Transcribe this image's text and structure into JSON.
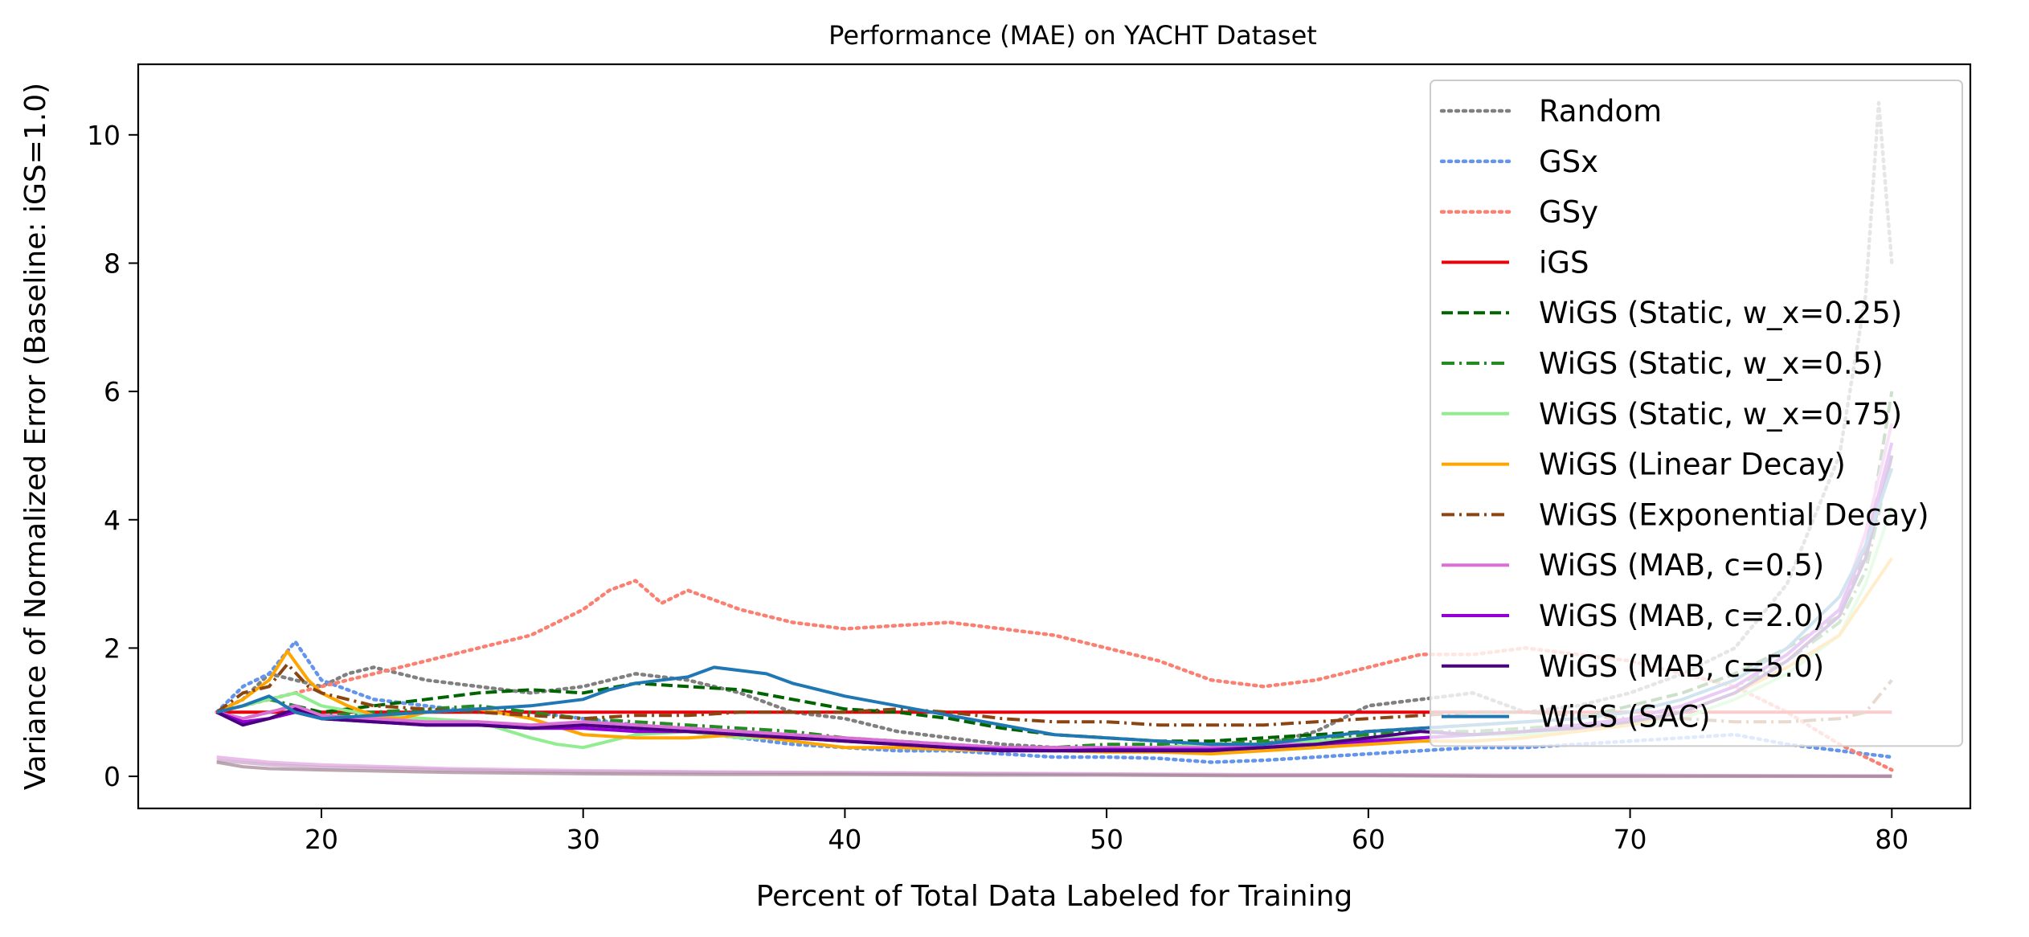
{
  "chart_data": {
    "type": "line",
    "title": "Performance (MAE) on YACHT Dataset",
    "xlabel": "Percent of Total Data Labeled for Training",
    "ylabel": "Variance of Normalized Error (Baseline: iGS=1.0)",
    "xlim": [
      13,
      83
    ],
    "ylim": [
      -0.5,
      11.1
    ],
    "xticks": [
      20,
      30,
      40,
      50,
      60,
      70,
      80
    ],
    "yticks": [
      0,
      2,
      4,
      6,
      8,
      10
    ],
    "grid": false,
    "legend_position": "top-right",
    "series": [
      {
        "name": "Random",
        "color": "#808080",
        "style": "dotted",
        "x": [
          16,
          17,
          18,
          19,
          20,
          21,
          22,
          24,
          26,
          28,
          30,
          32,
          34,
          36,
          38,
          40,
          42,
          44,
          46,
          48,
          50,
          52,
          54,
          56,
          58,
          60,
          62,
          64,
          66,
          68,
          70,
          72,
          74,
          76,
          78,
          79,
          79.5,
          80
        ],
        "y": [
          1.0,
          1.2,
          1.6,
          1.5,
          1.4,
          1.6,
          1.7,
          1.5,
          1.4,
          1.3,
          1.4,
          1.6,
          1.5,
          1.3,
          1.0,
          0.9,
          0.7,
          0.6,
          0.5,
          0.45,
          0.4,
          0.45,
          0.5,
          0.5,
          0.7,
          1.1,
          1.2,
          1.3,
          1.0,
          1.1,
          1.3,
          1.6,
          2.0,
          3.0,
          5.0,
          7.5,
          10.5,
          8.0
        ]
      },
      {
        "name": "GSx",
        "color": "#6495ED",
        "style": "dotted",
        "x": [
          16,
          17,
          18,
          19,
          20,
          22,
          24,
          26,
          28,
          30,
          32,
          34,
          36,
          38,
          40,
          42,
          44,
          46,
          48,
          50,
          52,
          54,
          56,
          58,
          60,
          62,
          64,
          66,
          68,
          70,
          72,
          74,
          76,
          78,
          80
        ],
        "y": [
          1.0,
          1.4,
          1.6,
          2.1,
          1.5,
          1.2,
          1.1,
          1.0,
          1.0,
          0.9,
          0.8,
          0.7,
          0.6,
          0.5,
          0.45,
          0.4,
          0.4,
          0.35,
          0.3,
          0.3,
          0.28,
          0.22,
          0.25,
          0.3,
          0.35,
          0.4,
          0.45,
          0.45,
          0.5,
          0.55,
          0.6,
          0.65,
          0.5,
          0.4,
          0.3
        ]
      },
      {
        "name": "GSy",
        "color": "#FA8072",
        "style": "dotted",
        "x": [
          16,
          18,
          20,
          22,
          24,
          26,
          28,
          30,
          31,
          32,
          33,
          34,
          36,
          38,
          40,
          42,
          44,
          46,
          48,
          50,
          52,
          54,
          56,
          58,
          60,
          62,
          64,
          66,
          68,
          70,
          72,
          74,
          76,
          78,
          80
        ],
        "y": [
          1.0,
          1.2,
          1.4,
          1.6,
          1.8,
          2.0,
          2.2,
          2.6,
          2.9,
          3.05,
          2.7,
          2.9,
          2.6,
          2.4,
          2.3,
          2.35,
          2.4,
          2.3,
          2.2,
          2.0,
          1.8,
          1.5,
          1.4,
          1.5,
          1.7,
          1.9,
          1.9,
          2.0,
          1.9,
          1.8,
          1.6,
          1.4,
          1.0,
          0.5,
          0.1
        ]
      },
      {
        "name": "iGS",
        "color": "#E8000B",
        "style": "solid",
        "x": [
          16,
          80
        ],
        "y": [
          1.0,
          1.0
        ]
      },
      {
        "name": "WiGS (Static, w_x=0.25)",
        "color": "#006400",
        "style": "dashed",
        "x": [
          16,
          17,
          18,
          19,
          20,
          22,
          24,
          26,
          28,
          30,
          32,
          34,
          36,
          38,
          40,
          42,
          44,
          46,
          48,
          50,
          52,
          54,
          56,
          58,
          60,
          62,
          64,
          66,
          68,
          70,
          72,
          74,
          76,
          78,
          79,
          80
        ],
        "y": [
          1.0,
          0.9,
          1.0,
          1.1,
          1.0,
          1.1,
          1.2,
          1.3,
          1.35,
          1.3,
          1.45,
          1.4,
          1.35,
          1.2,
          1.05,
          1.0,
          0.9,
          0.75,
          0.65,
          0.6,
          0.55,
          0.55,
          0.6,
          0.65,
          0.7,
          0.75,
          0.8,
          0.85,
          0.9,
          1.1,
          1.3,
          1.6,
          2.0,
          2.5,
          3.5,
          6.0
        ]
      },
      {
        "name": "WiGS (Static, w_x=0.5)",
        "color": "#228B22",
        "style": "dashdot",
        "x": [
          16,
          17,
          18,
          19,
          20,
          22,
          24,
          26,
          28,
          30,
          32,
          34,
          36,
          38,
          40,
          42,
          44,
          46,
          48,
          50,
          52,
          54,
          56,
          58,
          60,
          62,
          64,
          66,
          68,
          70,
          72,
          74,
          76,
          78,
          79,
          80
        ],
        "y": [
          1.0,
          1.1,
          1.2,
          1.1,
          0.95,
          1.0,
          1.05,
          1.1,
          1.0,
          0.9,
          0.85,
          0.8,
          0.75,
          0.7,
          0.6,
          0.55,
          0.5,
          0.45,
          0.45,
          0.5,
          0.5,
          0.5,
          0.55,
          0.6,
          0.65,
          0.7,
          0.7,
          0.75,
          0.8,
          0.9,
          1.1,
          1.4,
          1.8,
          2.4,
          3.2,
          5.0
        ]
      },
      {
        "name": "WiGS (Static, w_x=0.75)",
        "color": "#90EE90",
        "style": "solid",
        "x": [
          16,
          17,
          18,
          19,
          20,
          22,
          24,
          26,
          28,
          29,
          30,
          31,
          32,
          34,
          36,
          38,
          40,
          42,
          44,
          46,
          48,
          50,
          52,
          54,
          56,
          58,
          60,
          62,
          64,
          66,
          68,
          70,
          72,
          74,
          76,
          78,
          79,
          80
        ],
        "y": [
          1.0,
          1.1,
          1.2,
          1.3,
          1.1,
          0.95,
          0.9,
          0.85,
          0.6,
          0.5,
          0.45,
          0.55,
          0.65,
          0.7,
          0.6,
          0.6,
          0.55,
          0.5,
          0.45,
          0.45,
          0.4,
          0.4,
          0.45,
          0.5,
          0.5,
          0.55,
          0.6,
          0.6,
          0.65,
          0.65,
          0.7,
          0.8,
          0.9,
          1.2,
          1.6,
          2.2,
          3.0,
          4.2
        ]
      },
      {
        "name": "WiGS (Linear Decay)",
        "color": "#FFA500",
        "style": "solid",
        "x": [
          16,
          17,
          18,
          18.7,
          19.5,
          20,
          21,
          22,
          23,
          24,
          26,
          28,
          30,
          32,
          34,
          36,
          38,
          40,
          42,
          44,
          46,
          48,
          50,
          52,
          54,
          56,
          58,
          60,
          62,
          64,
          66,
          68,
          70,
          72,
          74,
          76,
          78,
          79,
          80
        ],
        "y": [
          1.0,
          1.2,
          1.5,
          1.95,
          1.5,
          1.3,
          1.1,
          0.95,
          0.9,
          1.0,
          1.05,
          0.9,
          0.65,
          0.6,
          0.6,
          0.65,
          0.55,
          0.45,
          0.45,
          0.42,
          0.4,
          0.4,
          0.38,
          0.38,
          0.35,
          0.4,
          0.45,
          0.5,
          0.55,
          0.55,
          0.6,
          0.7,
          0.8,
          1.0,
          1.3,
          1.7,
          2.2,
          2.8,
          3.4
        ]
      },
      {
        "name": "WiGS (Exponential Decay)",
        "color": "#8B4513",
        "style": "dashdot",
        "x": [
          16,
          17,
          18,
          18.7,
          19.5,
          20,
          21,
          22,
          24,
          26,
          28,
          30,
          32,
          34,
          36,
          38,
          40,
          42,
          44,
          46,
          48,
          50,
          52,
          54,
          56,
          58,
          60,
          62,
          64,
          66,
          68,
          70,
          72,
          74,
          76,
          78,
          79,
          80
        ],
        "y": [
          1.0,
          1.3,
          1.4,
          1.75,
          1.4,
          1.3,
          1.2,
          1.1,
          1.05,
          1.0,
          0.95,
          0.9,
          0.95,
          0.95,
          1.0,
          1.0,
          1.0,
          1.05,
          1.0,
          0.9,
          0.85,
          0.85,
          0.8,
          0.8,
          0.8,
          0.85,
          0.9,
          0.95,
          1.0,
          1.0,
          0.95,
          0.9,
          0.9,
          0.85,
          0.85,
          0.9,
          1.0,
          1.5
        ]
      },
      {
        "name": "WiGS (MAB, c=0.5)",
        "color": "#DA70D6",
        "style": "solid",
        "x": [
          16,
          17,
          18,
          19,
          20,
          22,
          24,
          26,
          28,
          30,
          32,
          34,
          36,
          38,
          40,
          42,
          44,
          46,
          48,
          50,
          52,
          54,
          56,
          58,
          60,
          62,
          64,
          66,
          68,
          70,
          72,
          74,
          76,
          78,
          79,
          80
        ],
        "y": [
          1.0,
          0.9,
          1.0,
          1.1,
          0.95,
          0.9,
          0.85,
          0.85,
          0.8,
          0.85,
          0.8,
          0.75,
          0.7,
          0.65,
          0.6,
          0.55,
          0.5,
          0.45,
          0.45,
          0.45,
          0.45,
          0.45,
          0.5,
          0.5,
          0.55,
          0.6,
          0.65,
          0.7,
          0.8,
          0.9,
          1.1,
          1.4,
          1.9,
          2.6,
          3.8,
          5.5
        ]
      },
      {
        "name": "WiGS (MAB, c=2.0)",
        "color": "#9400D3",
        "style": "solid",
        "x": [
          16,
          17,
          18,
          19,
          20,
          22,
          24,
          26,
          28,
          30,
          32,
          34,
          36,
          38,
          40,
          42,
          44,
          46,
          48,
          50,
          52,
          54,
          56,
          58,
          60,
          62,
          64,
          66,
          68,
          70,
          72,
          74,
          76,
          78,
          79,
          80
        ],
        "y": [
          1.0,
          0.85,
          0.9,
          1.0,
          0.9,
          0.85,
          0.8,
          0.8,
          0.75,
          0.75,
          0.7,
          0.7,
          0.65,
          0.6,
          0.55,
          0.5,
          0.45,
          0.42,
          0.4,
          0.42,
          0.42,
          0.42,
          0.45,
          0.5,
          0.55,
          0.6,
          0.65,
          0.7,
          0.8,
          0.9,
          1.1,
          1.4,
          1.9,
          2.6,
          3.6,
          5.2
        ]
      },
      {
        "name": "WiGS (MAB, c=5.0)",
        "color": "#4B0082",
        "style": "solid",
        "x": [
          16,
          17,
          18,
          19,
          20,
          22,
          24,
          26,
          28,
          30,
          32,
          34,
          36,
          38,
          40,
          42,
          44,
          46,
          48,
          50,
          52,
          54,
          56,
          58,
          60,
          62,
          64,
          66,
          68,
          70,
          72,
          74,
          76,
          78,
          79,
          80
        ],
        "y": [
          1.0,
          0.8,
          0.9,
          1.05,
          0.9,
          0.85,
          0.8,
          0.8,
          0.75,
          0.8,
          0.75,
          0.7,
          0.65,
          0.6,
          0.55,
          0.5,
          0.45,
          0.4,
          0.4,
          0.4,
          0.4,
          0.4,
          0.45,
          0.5,
          0.6,
          0.7,
          0.65,
          0.7,
          0.75,
          0.85,
          1.0,
          1.3,
          1.8,
          2.5,
          3.4,
          5.0
        ]
      },
      {
        "name": "WiGS (SAC)",
        "color": "#1F77B4",
        "style": "solid",
        "x": [
          16,
          17,
          18,
          19,
          20,
          22,
          24,
          26,
          28,
          30,
          31,
          32,
          33,
          34,
          35,
          36,
          37,
          38,
          40,
          42,
          44,
          46,
          48,
          50,
          52,
          54,
          56,
          58,
          60,
          62,
          64,
          66,
          68,
          70,
          72,
          74,
          76,
          78,
          79,
          80
        ],
        "y": [
          1.0,
          1.1,
          1.25,
          1.0,
          0.9,
          0.95,
          1.0,
          1.05,
          1.1,
          1.2,
          1.35,
          1.45,
          1.5,
          1.55,
          1.7,
          1.65,
          1.6,
          1.45,
          1.25,
          1.1,
          0.95,
          0.8,
          0.65,
          0.6,
          0.55,
          0.5,
          0.5,
          0.6,
          0.7,
          0.75,
          0.8,
          0.85,
          0.9,
          1.0,
          1.2,
          1.5,
          2.0,
          2.8,
          3.6,
          4.8
        ]
      },
      {
        "color": "#E0A0E0",
        "style": "solid",
        "x": [
          16,
          18,
          20,
          25,
          30,
          35,
          40,
          45,
          50,
          55,
          60,
          65,
          70,
          75,
          80
        ],
        "y": [
          0.3,
          0.22,
          0.18,
          0.12,
          0.09,
          0.07,
          0.06,
          0.05,
          0.04,
          0.03,
          0.03,
          0.02,
          0.02,
          0.01,
          0.01
        ]
      },
      {
        "color": "#C8A2C8",
        "style": "solid",
        "x": [
          16,
          18,
          20,
          25,
          30,
          35,
          40,
          45,
          50,
          55,
          60,
          65,
          70,
          75,
          80
        ],
        "y": [
          0.25,
          0.18,
          0.14,
          0.1,
          0.07,
          0.06,
          0.05,
          0.04,
          0.03,
          0.02,
          0.02,
          0.01,
          0.01,
          0.01,
          0.0
        ]
      },
      {
        "color": "#A08090",
        "style": "solid",
        "x": [
          16,
          17,
          18,
          20,
          25,
          30,
          35,
          40,
          45,
          50,
          55,
          60,
          65,
          70,
          75,
          80
        ],
        "y": [
          0.22,
          0.15,
          0.12,
          0.1,
          0.06,
          0.04,
          0.03,
          0.03,
          0.02,
          0.02,
          0.01,
          0.01,
          0.0,
          0.0,
          0.0,
          0.0
        ]
      }
    ]
  }
}
